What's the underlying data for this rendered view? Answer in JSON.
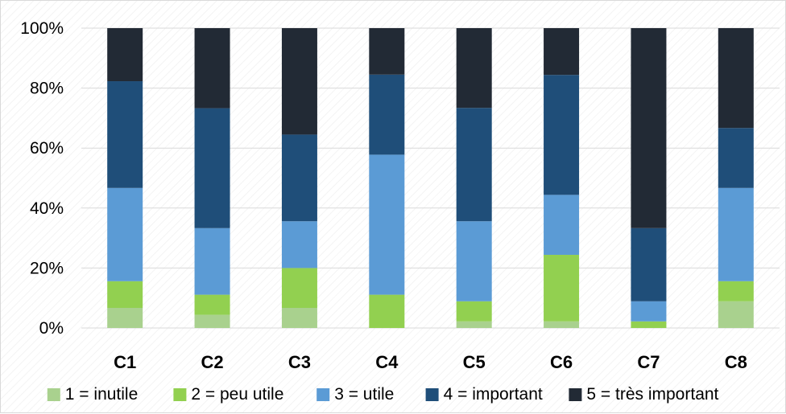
{
  "chart_data": {
    "type": "bar",
    "stacked": true,
    "normalized": true,
    "categories": [
      "C1",
      "C2",
      "C3",
      "C4",
      "C5",
      "C6",
      "C7",
      "C8"
    ],
    "series": [
      {
        "name": "1 = inutile",
        "color": "#a9d18e",
        "values": [
          6.7,
          4.4,
          6.7,
          0,
          2.2,
          2.2,
          0,
          8.9
        ]
      },
      {
        "name": "2 = peu utile",
        "color": "#92d050",
        "values": [
          8.9,
          6.7,
          13.3,
          11.1,
          6.7,
          22.2,
          2.2,
          6.7
        ]
      },
      {
        "name": "3 = utile",
        "color": "#5b9bd5",
        "values": [
          31.1,
          22.2,
          15.6,
          46.7,
          26.7,
          20.0,
          6.7,
          31.1
        ]
      },
      {
        "name": "4 = important",
        "color": "#1f4e79",
        "values": [
          35.6,
          40.0,
          28.9,
          26.7,
          37.8,
          40.0,
          24.4,
          20.0
        ]
      },
      {
        "name": "5 = très important",
        "color": "#222a35",
        "values": [
          17.7,
          26.7,
          35.5,
          15.5,
          26.6,
          15.6,
          66.7,
          33.3
        ]
      }
    ],
    "y_ticks": [
      "0%",
      "20%",
      "40%",
      "60%",
      "80%",
      "100%"
    ],
    "ylim": [
      0,
      100
    ],
    "grid": true,
    "legend_position": "bottom"
  }
}
